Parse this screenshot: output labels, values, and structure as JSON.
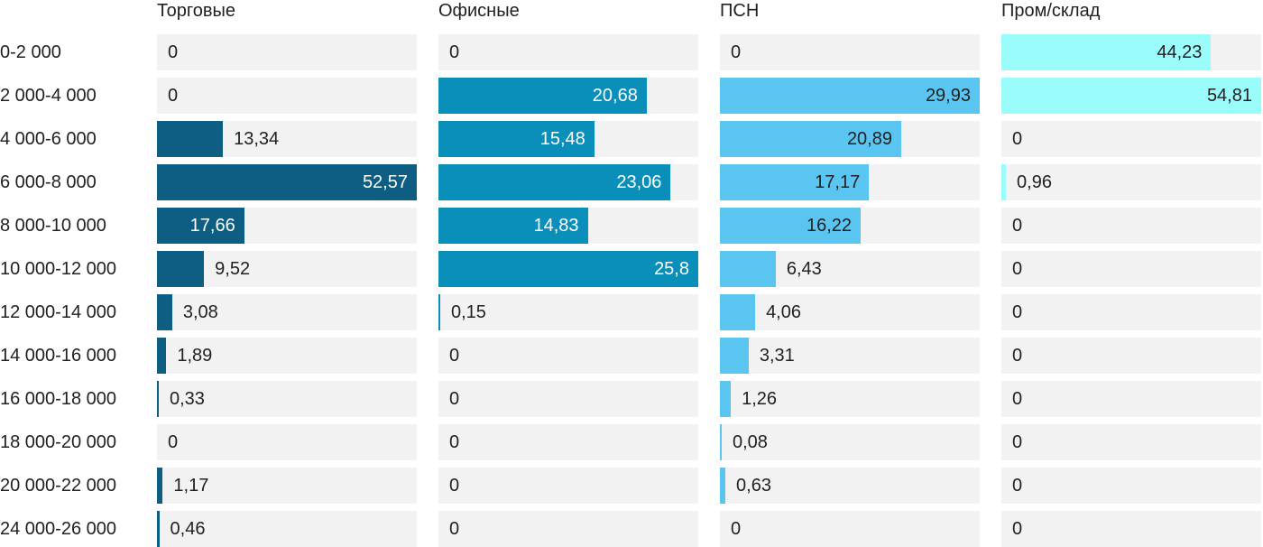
{
  "chart_data": {
    "type": "bar",
    "orientation": "horizontal",
    "title": "",
    "xlabel": "",
    "ylabel": "",
    "grid": false,
    "legend": false,
    "scaling": "each column scaled independently; column max value = full cell width",
    "value_label_decimal_separator": ",",
    "cell_background": "#f2f2f2",
    "text_color": "#212121",
    "categories": [
      "0-2 000",
      "2 000-4 000",
      "4 000-6 000",
      "6 000-8 000",
      "8 000-10 000",
      "10 000-12 000",
      "12 000-14 000",
      "14 000-16 000",
      "16 000-18 000",
      "18 000-20 000",
      "20 000-22 000",
      "24 000-26 000"
    ],
    "series": [
      {
        "name": "Торговые",
        "color": "#0e5e84",
        "label_color_on_bar": "#ffffff",
        "values": [
          0,
          0,
          13.34,
          52.57,
          17.66,
          9.52,
          3.08,
          1.89,
          0.33,
          0,
          1.17,
          0.46
        ]
      },
      {
        "name": "Офисные",
        "color": "#0a8fba",
        "label_color_on_bar": "#ffffff",
        "values": [
          0,
          20.68,
          15.48,
          23.06,
          14.83,
          25.8,
          0.15,
          0,
          0,
          0,
          0,
          0
        ]
      },
      {
        "name": "ПСН",
        "color": "#5bc5f1",
        "label_color_on_bar": "#212121",
        "values": [
          0,
          29.93,
          20.89,
          17.17,
          16.22,
          6.43,
          4.06,
          3.31,
          1.26,
          0.08,
          0.63,
          0
        ]
      },
      {
        "name": "Пром/склад",
        "color": "#9bfcfc",
        "label_color_on_bar": "#212121",
        "values": [
          44.23,
          54.81,
          0,
          0.96,
          0,
          0,
          0,
          0,
          0,
          0,
          0,
          0
        ]
      }
    ]
  }
}
